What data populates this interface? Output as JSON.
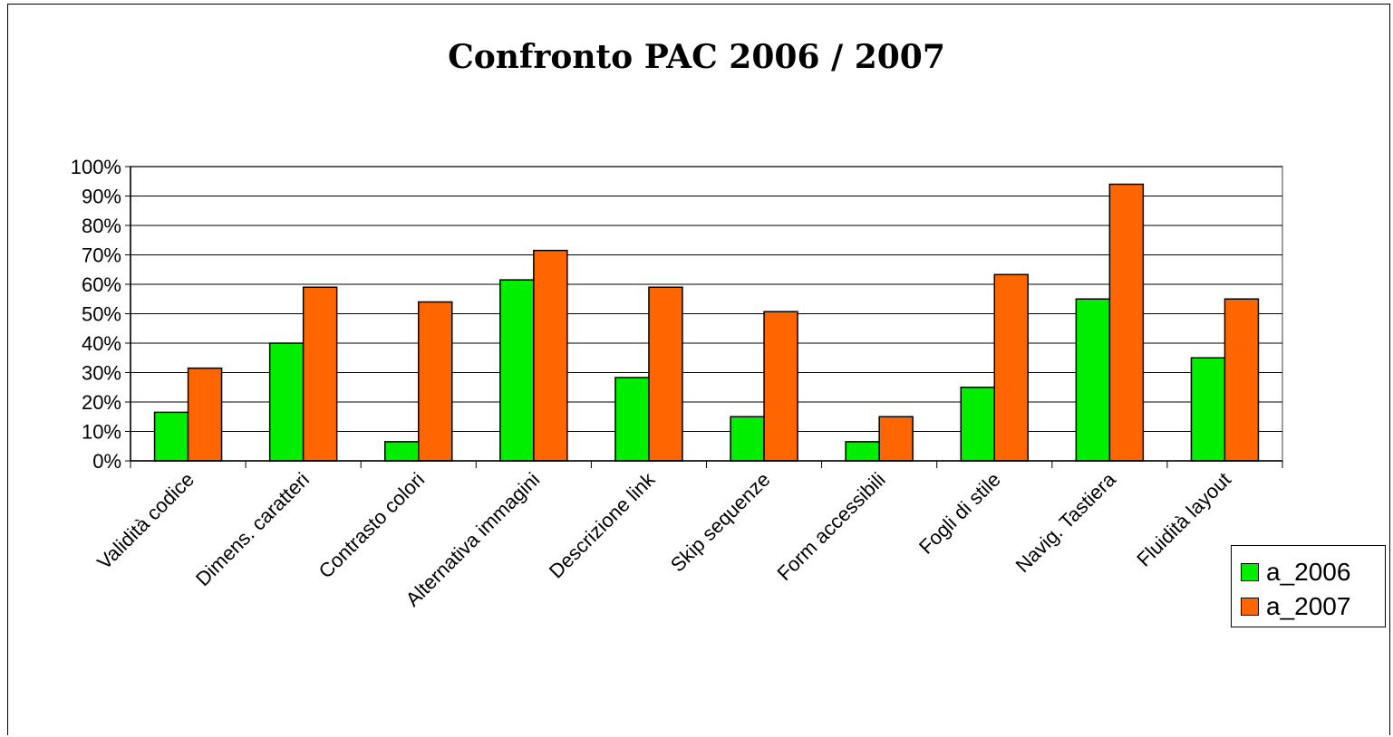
{
  "chart_data": {
    "type": "bar",
    "title": "Confronto PAC 2006 / 2007",
    "xlabel": "",
    "ylabel": "",
    "ylim": [
      0,
      100
    ],
    "y_ticks": [
      "0%",
      "10%",
      "20%",
      "30%",
      "40%",
      "50%",
      "60%",
      "70%",
      "80%",
      "90%",
      "100%"
    ],
    "grid": true,
    "legend_position": "right",
    "categories": [
      "Validità codice",
      "Dimens. caratteri",
      "Contrasto colori",
      "Alternativa immagini",
      "Descrizione link",
      "Skip sequenze",
      "Form accessibili",
      "Fogli di stile",
      "Navig. Tastiera",
      "Fluidità layout"
    ],
    "series": [
      {
        "name": "a_2006",
        "color": "#00ee00",
        "values": [
          16.5,
          40,
          6.5,
          61.5,
          28.3,
          15,
          6.5,
          25,
          55,
          35
        ]
      },
      {
        "name": "a_2007",
        "color": "#ff6600",
        "values": [
          31.5,
          59,
          54,
          71.5,
          59,
          50.7,
          15,
          63.3,
          94,
          55
        ]
      }
    ]
  }
}
